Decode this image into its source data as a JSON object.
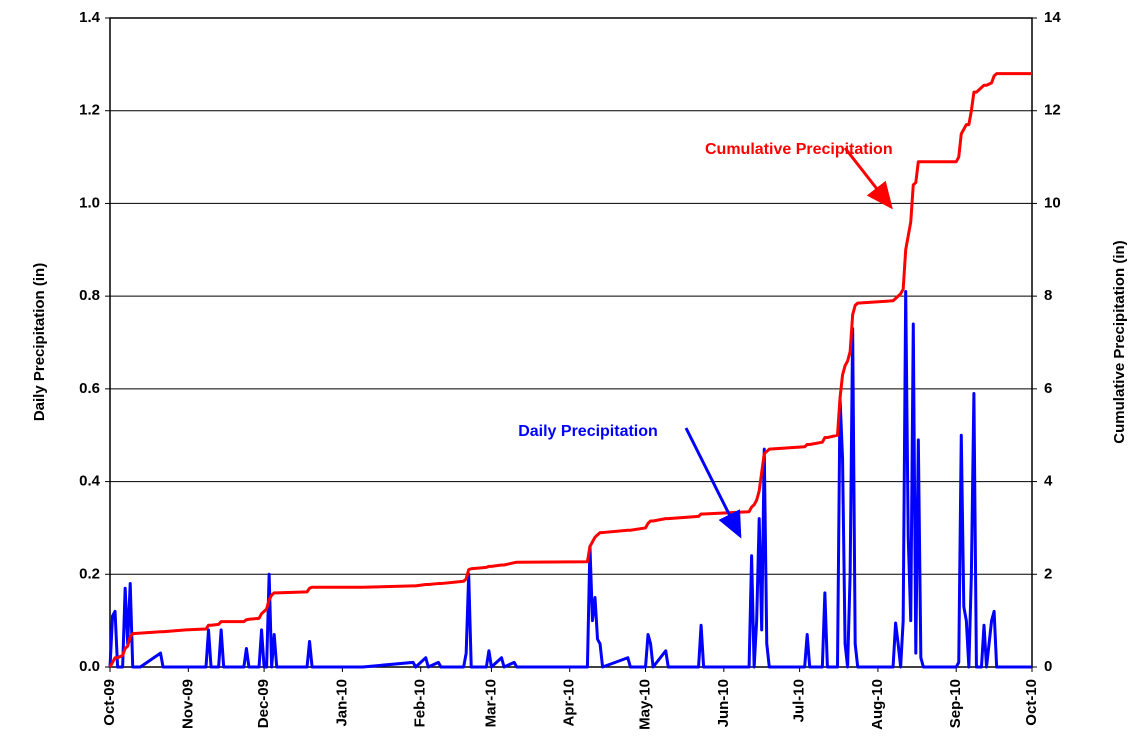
{
  "chart_data": {
    "type": "line",
    "y_label": "Daily Precipitation (in)",
    "y2_label": "Cumulative Precipitation (in)",
    "xlim": [
      0,
      365
    ],
    "xticks": [
      {
        "value": 0,
        "label": "Oct-09"
      },
      {
        "value": 31,
        "label": "Nov-09"
      },
      {
        "value": 61,
        "label": "Dec-09"
      },
      {
        "value": 92,
        "label": "Jan-10"
      },
      {
        "value": 123,
        "label": "Feb-10"
      },
      {
        "value": 151,
        "label": "Mar-10"
      },
      {
        "value": 182,
        "label": "Apr-10"
      },
      {
        "value": 212,
        "label": "May-10"
      },
      {
        "value": 243,
        "label": "Jun-10"
      },
      {
        "value": 273,
        "label": "Jul-10"
      },
      {
        "value": 304,
        "label": "Aug-10"
      },
      {
        "value": 335,
        "label": "Sep-10"
      },
      {
        "value": 365,
        "label": "Oct-10"
      }
    ],
    "ylim": [
      0,
      1.4
    ],
    "yticks": [
      {
        "value": 0,
        "label": "0.0"
      },
      0.2,
      0.4,
      0.6,
      0.8,
      {
        "value": 1,
        "label": "1.0"
      },
      1.2,
      1.4
    ],
    "y2lim": [
      0,
      14
    ],
    "y2ticks": [
      0,
      2,
      4,
      6,
      8,
      10,
      12,
      14
    ],
    "grid": true,
    "x": [
      0,
      1,
      2,
      3,
      5,
      6,
      7,
      8,
      9,
      12,
      20,
      21,
      30,
      38,
      39,
      40,
      43,
      44,
      45,
      53,
      54,
      55,
      59,
      60,
      61,
      62,
      63,
      64,
      65,
      66,
      78,
      79,
      80,
      100,
      120,
      121,
      125,
      126,
      130,
      131,
      140,
      141,
      142,
      143,
      149,
      150,
      151,
      155,
      156,
      160,
      161,
      189,
      190,
      191,
      192,
      193,
      194,
      195,
      205,
      206,
      212,
      213,
      214,
      215,
      220,
      221,
      233,
      234,
      235,
      253,
      254,
      255,
      256,
      257,
      258,
      259,
      260,
      261,
      275,
      276,
      277,
      282,
      283,
      284,
      288,
      289,
      290,
      291,
      292,
      293,
      294,
      295,
      296,
      310,
      311,
      312,
      313,
      314,
      315,
      316,
      317,
      318,
      319,
      320,
      321,
      322,
      335,
      336,
      337,
      338,
      339,
      340,
      341,
      342,
      343,
      345,
      346,
      347,
      349,
      350,
      351,
      365
    ],
    "series": [
      {
        "name": "Daily Precipitation",
        "color": "#0000ff",
        "values": [
          0,
          0.11,
          0.12,
          0,
          0,
          0.17,
          0.05,
          0.18,
          0,
          0,
          0.03,
          0,
          0,
          0,
          0.08,
          0,
          0,
          0.08,
          0,
          0,
          0.04,
          0,
          0,
          0.08,
          0,
          0,
          0.2,
          0,
          0.07,
          0,
          0,
          0.055,
          0,
          0,
          0.01,
          0,
          0.02,
          0,
          0.01,
          0,
          0,
          0.03,
          0.2,
          0,
          0,
          0.035,
          0,
          0.02,
          0,
          0.01,
          0,
          0,
          0.26,
          0.1,
          0.15,
          0.06,
          0.05,
          0,
          0.02,
          0,
          0,
          0.07,
          0.05,
          0,
          0.035,
          0,
          0,
          0.09,
          0,
          0,
          0.24,
          0,
          0.1,
          0.32,
          0.08,
          0.47,
          0.05,
          0,
          0,
          0.07,
          0,
          0,
          0.16,
          0,
          0,
          0.58,
          0.45,
          0.05,
          0,
          0.2,
          0.73,
          0.05,
          0,
          0,
          0.095,
          0.05,
          0,
          0.1,
          0.81,
          0.28,
          0.1,
          0.74,
          0.03,
          0.49,
          0.02,
          0,
          0,
          0.01,
          0.5,
          0.13,
          0.1,
          0,
          0.2,
          0.59,
          0,
          0,
          0.09,
          0,
          0.1,
          0.12,
          0,
          0
        ]
      },
      {
        "name": "Cumulative Precipitation",
        "color": "#ff0000",
        "axis": "y2",
        "values": [
          0,
          0.1,
          0.2,
          0.2,
          0.25,
          0.4,
          0.45,
          0.65,
          0.72,
          0.73,
          0.76,
          0.76,
          0.8,
          0.82,
          0.9,
          0.9,
          0.92,
          0.98,
          0.98,
          0.98,
          1.02,
          1.03,
          1.05,
          1.15,
          1.2,
          1.25,
          1.45,
          1.55,
          1.6,
          1.6,
          1.62,
          1.7,
          1.72,
          1.72,
          1.75,
          1.75,
          1.78,
          1.78,
          1.8,
          1.8,
          1.85,
          1.9,
          2.1,
          2.12,
          2.15,
          2.17,
          2.17,
          2.2,
          2.2,
          2.25,
          2.26,
          2.27,
          2.6,
          2.7,
          2.8,
          2.85,
          2.9,
          2.9,
          2.95,
          2.95,
          3.0,
          3.1,
          3.15,
          3.15,
          3.2,
          3.2,
          3.25,
          3.3,
          3.3,
          3.35,
          3.45,
          3.5,
          3.6,
          3.8,
          4.2,
          4.6,
          4.65,
          4.7,
          4.75,
          4.8,
          4.8,
          4.85,
          4.95,
          4.95,
          5.0,
          5.8,
          6.3,
          6.5,
          6.6,
          6.8,
          7.6,
          7.8,
          7.85,
          7.9,
          7.95,
          8.0,
          8.05,
          8.15,
          9.0,
          9.3,
          9.6,
          10.4,
          10.45,
          10.9,
          10.9,
          10.9,
          10.9,
          11.0,
          11.5,
          11.6,
          11.7,
          11.7,
          12.0,
          12.4,
          12.4,
          12.5,
          12.55,
          12.55,
          12.6,
          12.75,
          12.8,
          12.8
        ]
      }
    ]
  }
}
